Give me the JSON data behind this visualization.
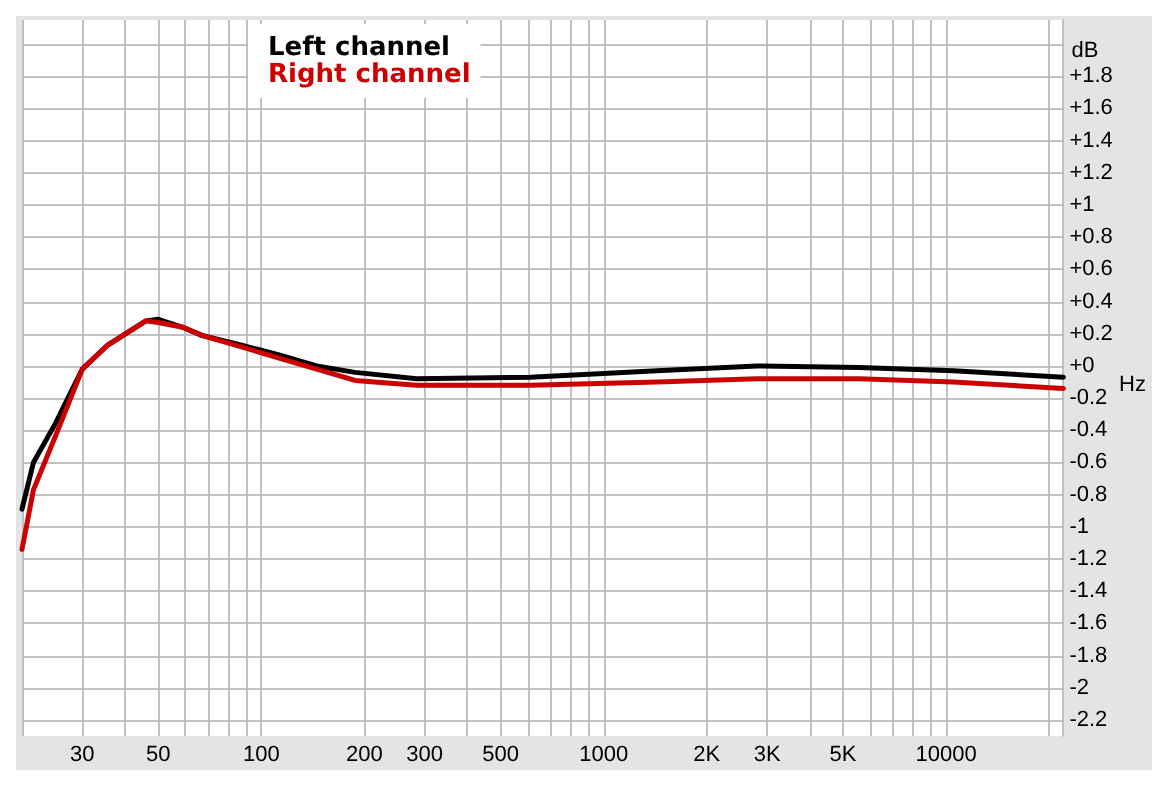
{
  "chart_data": {
    "type": "line",
    "xlabel": "Hz",
    "ylabel": "dB",
    "log": "x",
    "grid": true,
    "legend": "top left",
    "marker": "none",
    "line_style": "solid",
    "x": [
      20,
      21.6,
      25,
      30,
      35.6,
      46,
      50,
      59,
      67,
      87,
      112,
      145,
      188,
      284,
      610,
      1430,
      2800,
      5570,
      10500,
      22000
    ],
    "series": [
      {
        "name": "Left channel",
        "color": "#000000",
        "values": [
          -0.89,
          -0.6,
          -0.36,
          -0.02,
          0.13,
          0.28,
          0.29,
          0.24,
          0.19,
          0.13,
          0.07,
          0.0,
          -0.04,
          -0.08,
          -0.07,
          -0.03,
          0.0,
          -0.01,
          -0.03,
          -0.07
        ]
      },
      {
        "name": "Right channel",
        "color": "#cc0000",
        "values": [
          -1.14,
          -0.77,
          -0.44,
          -0.02,
          0.13,
          0.28,
          0.27,
          0.24,
          0.19,
          0.12,
          0.05,
          -0.02,
          -0.09,
          -0.12,
          -0.12,
          -0.1,
          -0.08,
          -0.08,
          -0.1,
          -0.14
        ]
      }
    ],
    "xlim": [
      20,
      22000
    ],
    "ylim": [
      -2.3,
      2.15
    ],
    "xticks": [
      {
        "value": 20,
        "label": null
      },
      30,
      {
        "value": 40,
        "label": null
      },
      50,
      {
        "value": 60,
        "label": null
      },
      {
        "value": 70,
        "label": null
      },
      {
        "value": 80,
        "label": null
      },
      {
        "value": 90,
        "label": null
      },
      100,
      200,
      300,
      {
        "value": 400,
        "label": null
      },
      500,
      {
        "value": 600,
        "label": null
      },
      {
        "value": 700,
        "label": null
      },
      {
        "value": 800,
        "label": null
      },
      {
        "value": 900,
        "label": null
      },
      1000,
      {
        "value": 2000,
        "label": "2K"
      },
      {
        "value": 3000,
        "label": "3K"
      },
      {
        "value": 4000,
        "label": null
      },
      {
        "value": 5000,
        "label": "5K"
      },
      {
        "value": 6000,
        "label": null
      },
      {
        "value": 7000,
        "label": null
      },
      {
        "value": 8000,
        "label": null
      },
      {
        "value": 9000,
        "label": null
      },
      10000,
      {
        "value": 20000,
        "label": null
      }
    ],
    "yticks": [
      {
        "value": 2,
        "label": null
      },
      {
        "value": 1.8,
        "label": "+1.8"
      },
      {
        "value": 1.6,
        "label": "+1.6"
      },
      {
        "value": 1.4,
        "label": "+1.4"
      },
      {
        "value": 1.2,
        "label": "+1.2"
      },
      {
        "value": 1,
        "label": "+1"
      },
      {
        "value": 0.8,
        "label": "+0.8"
      },
      {
        "value": 0.6,
        "label": "+0.6"
      },
      {
        "value": 0.4,
        "label": "+0.4"
      },
      {
        "value": 0.2,
        "label": "+0.2"
      },
      {
        "value": 0,
        "label": "+0"
      },
      -0.2,
      -0.4,
      -0.6,
      -0.8,
      -1,
      -1.2,
      -1.4,
      -1.6,
      -1.8,
      -2,
      -2.2
    ]
  }
}
